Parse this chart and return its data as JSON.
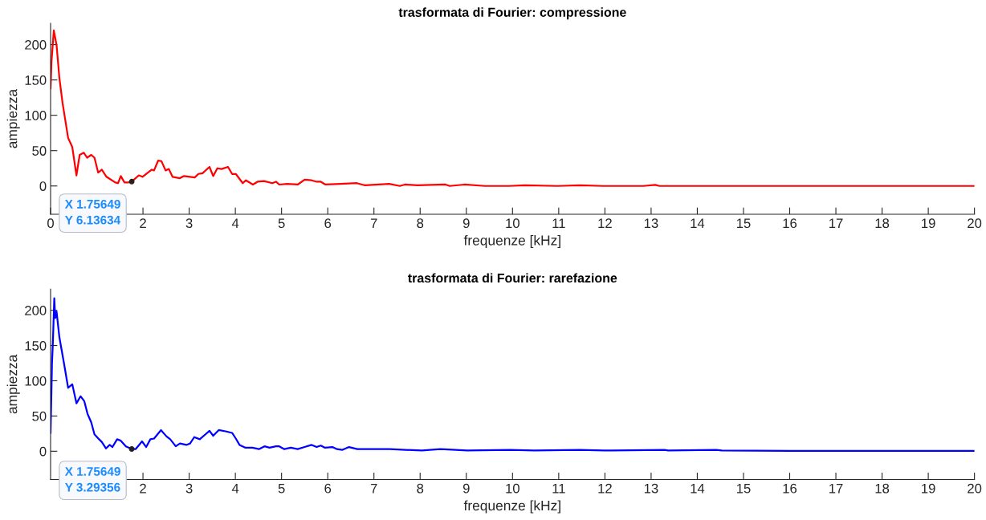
{
  "chart_data": [
    {
      "type": "line",
      "title": "trasformata di Fourier: compressione",
      "xlabel": "frequenze [kHz]",
      "ylabel": "ampiezza",
      "xlim": [
        0,
        20
      ],
      "ylim": [
        -40,
        230
      ],
      "xticks": [
        0,
        2,
        3,
        4,
        5,
        6,
        7,
        8,
        9,
        10,
        11,
        12,
        13,
        14,
        15,
        16,
        17,
        18,
        19,
        20
      ],
      "yticks": [
        0,
        50,
        100,
        150,
        200
      ],
      "grid": false,
      "legend": false,
      "marker": "none",
      "line_style": "solid",
      "series": [
        {
          "color": "#ff0000",
          "x": [
            0,
            0.02,
            0.07,
            0.13,
            0.19,
            0.26,
            0.38,
            0.47,
            0.56,
            0.63,
            0.72,
            0.79,
            0.88,
            0.95,
            1.03,
            1.11,
            1.21,
            1.4,
            1.46,
            1.52,
            1.6,
            1.68,
            1.75649,
            1.91,
            1.99,
            2.19,
            2.24,
            2.33,
            2.4,
            2.49,
            2.56,
            2.64,
            2.8,
            2.88,
            3.12,
            3.2,
            3.29,
            3.44,
            3.52,
            3.61,
            3.7,
            3.84,
            3.93,
            4.01,
            4.16,
            4.23,
            4.38,
            4.48,
            4.62,
            4.8,
            4.88,
            4.95,
            5.12,
            5.35,
            5.5,
            5.65,
            5.76,
            5.85,
            5.95,
            6.28,
            6.63,
            6.74,
            6.81,
            7.33,
            7.56,
            7.67,
            7.94,
            8.55,
            8.64,
            8.96,
            9.4,
            9.92,
            10.27,
            10.97,
            11.46,
            11.96,
            12.83,
            13.09,
            13.18,
            14.57,
            16,
            18,
            20
          ],
          "values": [
            138,
            176,
            220,
            199,
            153,
            117,
            68,
            55,
            15,
            44,
            47,
            40,
            44,
            40,
            19,
            23,
            13,
            5,
            4,
            14,
            5,
            5,
            6.13634,
            15,
            13,
            23,
            22,
            36,
            35,
            22,
            24,
            13,
            11,
            14,
            12,
            17,
            18,
            27,
            14,
            25,
            24,
            27,
            17,
            17,
            4,
            8,
            2,
            6,
            7,
            4,
            6,
            2,
            3,
            2,
            9,
            8,
            6,
            6,
            2,
            3,
            4,
            2,
            1,
            3,
            0,
            2,
            1,
            2,
            0,
            2,
            0,
            0,
            1,
            0,
            1,
            0,
            0,
            1.5,
            0,
            0,
            0,
            0,
            0
          ]
        }
      ],
      "annotations": [
        {
          "text": "X 1.75649\nY 6.13634",
          "x": 1.75649,
          "y": 6.13634
        }
      ]
    },
    {
      "type": "line",
      "title": "trasformata di Fourier: rarefazione",
      "xlabel": "frequenze [kHz]",
      "ylabel": "ampiezza",
      "xlim": [
        0,
        20
      ],
      "ylim": [
        -40,
        230
      ],
      "xticks": [
        2,
        3,
        4,
        5,
        6,
        7,
        8,
        9,
        10,
        11,
        12,
        13,
        14,
        15,
        16,
        17,
        18,
        19,
        20
      ],
      "yticks": [
        0,
        50,
        100,
        150,
        200
      ],
      "grid": false,
      "legend": false,
      "marker": "none",
      "line_style": "solid",
      "series": [
        {
          "color": "#0000ff",
          "x": [
            0,
            0.02,
            0.03,
            0.05,
            0.08,
            0.1,
            0.13,
            0.19,
            0.3,
            0.38,
            0.47,
            0.56,
            0.65,
            0.73,
            0.8,
            0.88,
            0.95,
            1.05,
            1.11,
            1.2,
            1.28,
            1.34,
            1.44,
            1.52,
            1.63,
            1.75649,
            1.84,
            1.98,
            2.07,
            2.16,
            2.24,
            2.39,
            2.51,
            2.59,
            2.71,
            2.8,
            2.94,
            3.02,
            3.11,
            3.23,
            3.44,
            3.52,
            3.64,
            3.81,
            3.93,
            4.01,
            4.09,
            4.22,
            4.37,
            4.51,
            4.63,
            4.74,
            4.88,
            4.95,
            5.06,
            5.2,
            5.35,
            5.5,
            5.65,
            5.76,
            5.85,
            5.94,
            6.1,
            6.2,
            6.32,
            6.46,
            6.64,
            6.75,
            7.34,
            8.04,
            8.44,
            9.02,
            9.95,
            10.47,
            11.46,
            11.98,
            13.29,
            13.37,
            14.41,
            14.53,
            16,
            18,
            20
          ],
          "values": [
            26,
            90,
            124,
            154,
            217,
            189,
            198,
            162,
            121,
            90,
            95,
            68,
            78,
            71,
            53,
            41,
            24,
            17,
            13,
            4,
            9,
            6,
            17,
            15,
            7,
            3.29356,
            3,
            14,
            6,
            17,
            18,
            30,
            21,
            17,
            7,
            11,
            9,
            11,
            20,
            17,
            29,
            22,
            30,
            28,
            26,
            18,
            9,
            5,
            5,
            3,
            7,
            5,
            7,
            7,
            3,
            5,
            3,
            6,
            9,
            6,
            8,
            5,
            6,
            3,
            2,
            6,
            3,
            3,
            3,
            1,
            3,
            1,
            2,
            1,
            2,
            1,
            2,
            1,
            2,
            1,
            0.5,
            0.5,
            0.5
          ]
        }
      ],
      "annotations": [
        {
          "text": "X 1.75649\nY 3.29356",
          "x": 1.75649,
          "y": 3.29356
        }
      ]
    }
  ]
}
